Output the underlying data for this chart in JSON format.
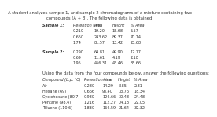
{
  "title_line1": "A student analyzes sample 1, and sample 2 chromatograms of a mixture containing two",
  "title_line2": "compounds (A + B). The following data is obtained:",
  "sample1_label": "Sample 1:",
  "sample1_headers": [
    "Retention time",
    "Area",
    "Height",
    "% Area"
  ],
  "sample1_rows": [
    [
      "0.210",
      "19.20",
      "15.68",
      "5.57"
    ],
    [
      "0.650",
      "243.62",
      "89.37",
      "70.74"
    ],
    [
      "1.74",
      "81.57",
      "13.42",
      "23.68"
    ]
  ],
  "sample2_label": "Sample 2:",
  "sample2_rows": [
    [
      "0.290",
      "64.81",
      "49.90",
      "12.17"
    ],
    [
      "0.69",
      "11.61",
      "4.19",
      "2.18"
    ],
    [
      "1.95",
      "456.31",
      "43.46",
      "85.66"
    ]
  ],
  "using_line": "Using the data from the four compounds below, answer the following questions:",
  "compounds_headers": [
    "Compound (b.p. °C)",
    "Retention time",
    "Area",
    "Height",
    "% Area"
  ],
  "compounds_rows": [
    [
      "Air",
      "0.280",
      "14.29",
      "8.85",
      "2.81"
    ],
    [
      "Hexane (69)",
      "0.666",
      "93.40",
      "33.76",
      "18.34"
    ],
    [
      "Cyclohexane (80.7)",
      "0.980",
      "124.66",
      "30.48",
      "24.48"
    ],
    [
      "Pentane (98.4)",
      "1.216",
      "112.27",
      "24.18",
      "22.05"
    ],
    [
      "Toluene (110.6)",
      "1.830",
      "164.59",
      "21.64",
      "32.32"
    ]
  ],
  "bg_color": "#ffffff",
  "text_color": "#333333"
}
